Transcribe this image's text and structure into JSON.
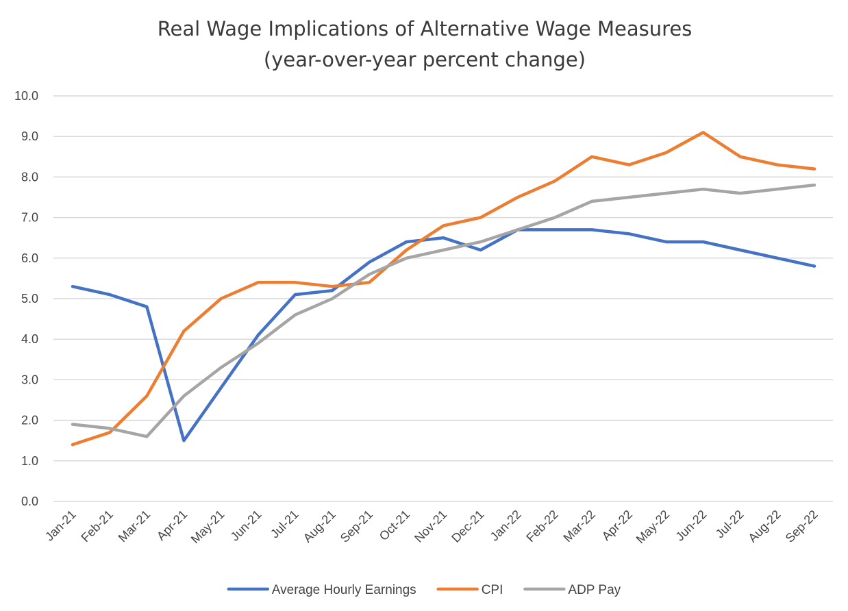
{
  "chart_data": {
    "type": "line",
    "title": "Real Wage Implications of Alternative Wage Measures",
    "subtitle": "(year-over-year percent change)",
    "xlabel": "",
    "ylabel": "",
    "ylim": [
      0,
      10
    ],
    "yticks": [
      "0.0",
      "1.0",
      "2.0",
      "3.0",
      "4.0",
      "5.0",
      "6.0",
      "7.0",
      "8.0",
      "9.0",
      "10.0"
    ],
    "grid": true,
    "legend_position": "bottom",
    "categories": [
      "Jan-21",
      "Feb-21",
      "Mar-21",
      "Apr-21",
      "May-21",
      "Jun-21",
      "Jul-21",
      "Aug-21",
      "Sep-21",
      "Oct-21",
      "Nov-21",
      "Dec-21",
      "Jan-22",
      "Feb-22",
      "Mar-22",
      "Apr-22",
      "May-22",
      "Jun-22",
      "Jul-22",
      "Aug-22",
      "Sep-22"
    ],
    "series": [
      {
        "name": "Average Hourly Earnings",
        "color": "#4472c4",
        "values": [
          5.3,
          5.1,
          4.8,
          1.5,
          2.8,
          4.1,
          5.1,
          5.2,
          5.9,
          6.4,
          6.5,
          6.2,
          6.7,
          6.7,
          6.7,
          6.6,
          6.4,
          6.4,
          6.2,
          6.0,
          5.8
        ]
      },
      {
        "name": "CPI",
        "color": "#ed7d31",
        "values": [
          1.4,
          1.7,
          2.6,
          4.2,
          5.0,
          5.4,
          5.4,
          5.3,
          5.4,
          6.2,
          6.8,
          7.0,
          7.5,
          7.9,
          8.5,
          8.3,
          8.6,
          9.1,
          8.5,
          8.3,
          8.2
        ]
      },
      {
        "name": "ADP Pay",
        "color": "#a5a5a5",
        "values": [
          1.9,
          1.8,
          1.6,
          2.6,
          3.3,
          3.9,
          4.6,
          5.0,
          5.6,
          6.0,
          6.2,
          6.4,
          6.7,
          7.0,
          7.4,
          7.5,
          7.6,
          7.7,
          7.6,
          7.7,
          7.8
        ]
      }
    ]
  }
}
